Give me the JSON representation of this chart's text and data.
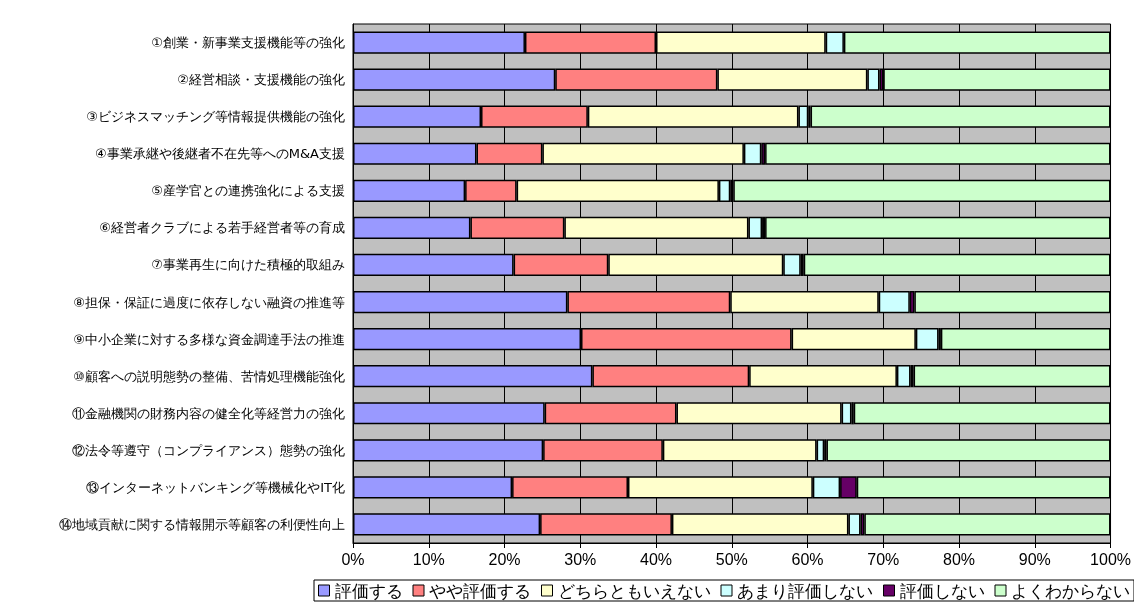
{
  "chart_data": {
    "type": "bar",
    "orientation": "horizontal",
    "stacked": true,
    "legend": "bottom",
    "grid": "x",
    "categories": [
      "①創業・新事業支援機能等の強化",
      "②経営相談・支援機能の強化",
      "③ビジネスマッチング等情報提供機能の強化",
      "④事業承継や後継者不在先等へのM&A支援",
      "⑤産学官との連携強化による支援",
      "⑥経営者クラブによる若手経営者等の育成",
      "⑦事業再生に向けた積極的取組み",
      "⑧担保・保証に過度に依存しない融資の推進等",
      "⑨中小企業に対する多様な資金調達手法の推進",
      "⑩顧客への説明態勢の整備、苦情処理機能強化",
      "⑪金融機関の財務内容の健全化等経営力の強化",
      "⑫法令等遵守（コンプライアンス）態勢の強化",
      "⑬インターネットバンキング等機械化やIT化",
      "⑭地域貢献に関する情報開示等顧客の利便性向上"
    ],
    "xlim": [
      0,
      100
    ],
    "xticks": [
      {
        "value": 0,
        "label": "0%"
      },
      {
        "value": 10,
        "label": "10%"
      },
      {
        "value": 20,
        "label": "20%"
      },
      {
        "value": 30,
        "label": "30%"
      },
      {
        "value": 40,
        "label": "40%"
      },
      {
        "value": 50,
        "label": "50%"
      },
      {
        "value": 60,
        "label": "60%"
      },
      {
        "value": 70,
        "label": "70%"
      },
      {
        "value": 80,
        "label": "80%"
      },
      {
        "value": 90,
        "label": "90%"
      },
      {
        "value": 100,
        "label": "100%"
      }
    ],
    "series": [
      {
        "name": "評価する",
        "color": "#9999ff",
        "values": [
          22.7,
          26.7,
          16.9,
          16.3,
          14.8,
          15.5,
          21.2,
          28.3,
          30.1,
          31.6,
          25.3,
          25.1,
          21.0,
          24.7
        ]
      },
      {
        "name": "やや評価する",
        "color": "#ff8080",
        "values": [
          17.3,
          21.4,
          14.1,
          8.7,
          6.8,
          12.4,
          12.5,
          21.5,
          27.8,
          20.7,
          17.4,
          15.8,
          15.3,
          17.4
        ]
      },
      {
        "name": "どちらともいえない",
        "color": "#ffffcc",
        "values": [
          22.4,
          19.8,
          27.8,
          26.6,
          26.7,
          24.3,
          23.1,
          19.6,
          16.4,
          19.5,
          21.8,
          20.3,
          24.4,
          23.3
        ]
      },
      {
        "name": "あまり評価しない",
        "color": "#ccffff",
        "values": [
          2.4,
          1.6,
          1.3,
          2.3,
          1.5,
          1.8,
          2.3,
          4.1,
          3.0,
          1.8,
          1.3,
          1.0,
          3.6,
          1.6
        ]
      },
      {
        "name": "評価しない",
        "color": "#660066",
        "values": [
          0,
          0.5,
          0.3,
          0.5,
          0.4,
          0.4,
          0.4,
          0.6,
          0.3,
          0.4,
          0.3,
          0.3,
          2.2,
          0.5
        ]
      },
      {
        "name": "よくわからない",
        "color": "#ccffcc",
        "values": [
          35.2,
          30.0,
          39.6,
          45.6,
          49.8,
          45.6,
          40.5,
          25.9,
          22.4,
          26.0,
          33.9,
          37.5,
          33.5,
          32.5
        ]
      }
    ]
  }
}
